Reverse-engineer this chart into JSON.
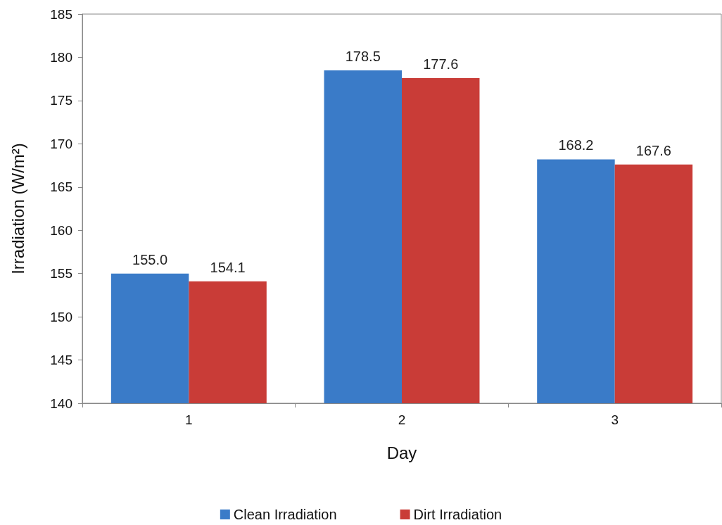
{
  "chart_data": {
    "type": "bar",
    "xlabel": "Day",
    "ylabel": "Irradiation (W/m²)",
    "categories": [
      "1",
      "2",
      "3"
    ],
    "series": [
      {
        "name": "Clean Irradiation",
        "color": "#3a7bc8",
        "values": [
          155.0,
          178.5,
          168.2
        ],
        "value_labels": [
          "155.0",
          "178.5",
          "168.2"
        ]
      },
      {
        "name": "Dirt Irradiation",
        "color": "#c93c37",
        "values": [
          154.1,
          177.6,
          167.6
        ],
        "value_labels": [
          "154.1",
          "177.6",
          "167.6"
        ]
      }
    ],
    "ylim": [
      140,
      185
    ],
    "yticks": [
      140,
      145,
      150,
      155,
      160,
      165,
      170,
      175,
      180,
      185
    ],
    "grid": false,
    "legend": "bottom"
  }
}
